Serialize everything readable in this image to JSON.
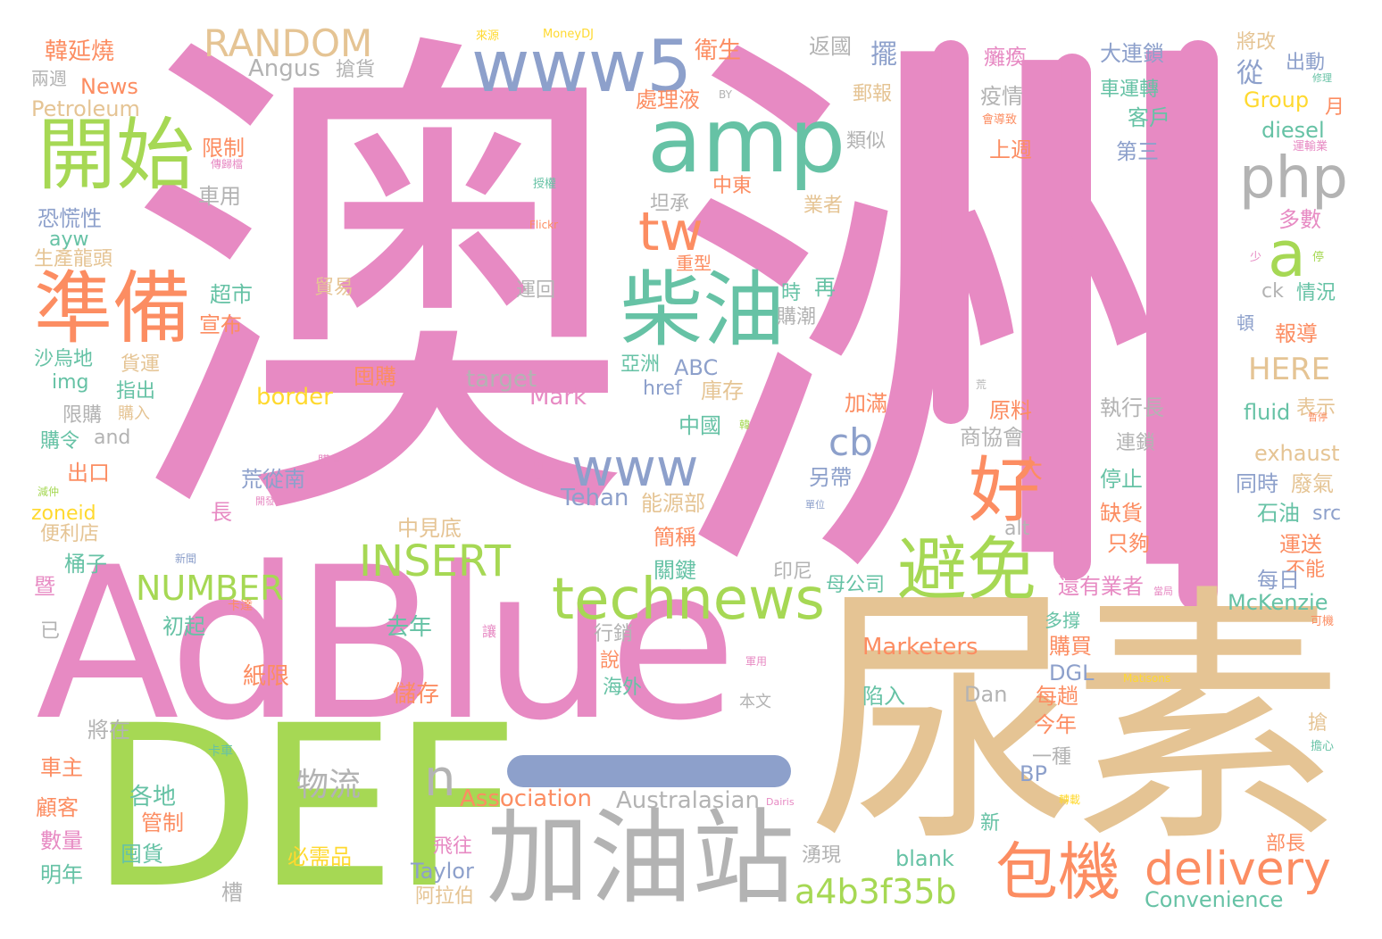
{
  "palette": {
    "pink": "#e78ac3",
    "green": "#a6d854",
    "tan": "#e5c494",
    "gray": "#b3b3b3",
    "teal": "#66c2a5",
    "blue": "#8da0cb",
    "orange": "#fc8d62",
    "yellow": "#ffd92f"
  },
  "words": [
    {
      "text": "澳",
      "color": "pink"
    },
    {
      "text": "洲",
      "color": "pink"
    },
    {
      "text": "AdBlue",
      "color": "pink"
    },
    {
      "text": "尿素",
      "color": "tan"
    },
    {
      "text": "DEF",
      "color": "green"
    },
    {
      "text": "加油站",
      "color": "gray"
    },
    {
      "text": "開始",
      "color": "green"
    },
    {
      "text": "準備",
      "color": "orange"
    },
    {
      "text": "amp",
      "color": "teal"
    },
    {
      "text": "www5",
      "color": "blue"
    },
    {
      "text": "RANDOM",
      "color": "tan"
    },
    {
      "text": "柴油",
      "color": "teal"
    },
    {
      "text": "tw",
      "color": "orange"
    },
    {
      "text": "php",
      "color": "gray"
    },
    {
      "text": "a",
      "color": "green"
    },
    {
      "text": "好",
      "color": "orange"
    },
    {
      "text": "避免",
      "color": "green"
    },
    {
      "text": "technews",
      "color": "green"
    },
    {
      "text": "www",
      "color": "blue"
    },
    {
      "text": "INSERT",
      "color": "green"
    },
    {
      "text": "NUMBER",
      "color": "green"
    },
    {
      "text": "包機",
      "color": "orange"
    },
    {
      "text": "delivery",
      "color": "orange"
    },
    {
      "text": "a4b3f35b",
      "color": "green"
    },
    {
      "text": "n",
      "color": "gray"
    },
    {
      "text": "物流",
      "color": "gray"
    },
    {
      "text": "cb",
      "color": "blue"
    },
    {
      "text": "Marketers",
      "color": "orange"
    },
    {
      "text": "Association",
      "color": "orange"
    },
    {
      "text": "Australasian",
      "color": "gray"
    },
    {
      "text": "Convenience",
      "color": "teal"
    },
    {
      "text": "McKenzie",
      "color": "teal"
    },
    {
      "text": "exhaust",
      "color": "tan"
    },
    {
      "text": "HERE",
      "color": "tan"
    },
    {
      "text": "Petroleum",
      "color": "tan"
    },
    {
      "text": "News",
      "color": "orange"
    },
    {
      "text": "Angus",
      "color": "gray"
    },
    {
      "text": "border",
      "color": "yellow"
    },
    {
      "text": "target",
      "color": "gray"
    },
    {
      "text": "Mark",
      "color": "pink"
    },
    {
      "text": "Tehan",
      "color": "blue"
    },
    {
      "text": "Taylor",
      "color": "blue"
    },
    {
      "text": "blank",
      "color": "teal"
    },
    {
      "text": "Dan",
      "color": "gray"
    },
    {
      "text": "DGL",
      "color": "blue"
    },
    {
      "text": "BP",
      "color": "blue"
    },
    {
      "text": "Group",
      "color": "yellow"
    },
    {
      "text": "diesel",
      "color": "teal"
    },
    {
      "text": "fluid",
      "color": "teal"
    },
    {
      "text": "src",
      "color": "blue"
    },
    {
      "text": "ck",
      "color": "gray"
    },
    {
      "text": "alt",
      "color": "gray"
    },
    {
      "text": "href",
      "color": "blue"
    },
    {
      "text": "ABC",
      "color": "blue"
    },
    {
      "text": "img",
      "color": "teal"
    },
    {
      "text": "and",
      "color": "gray"
    },
    {
      "text": "ayw",
      "color": "teal"
    },
    {
      "text": "zoneid",
      "color": "yellow"
    },
    {
      "text": "韓延燒",
      "color": "orange"
    },
    {
      "text": "兩週",
      "color": "gray"
    },
    {
      "text": "限制",
      "color": "orange"
    },
    {
      "text": "車用",
      "color": "gray"
    },
    {
      "text": "恐慌性",
      "color": "blue"
    },
    {
      "text": "生產龍頭",
      "color": "tan"
    },
    {
      "text": "超市",
      "color": "teal"
    },
    {
      "text": "宣布",
      "color": "orange"
    },
    {
      "text": "沙烏地",
      "color": "teal"
    },
    {
      "text": "貨運",
      "color": "tan"
    },
    {
      "text": "指出",
      "color": "teal"
    },
    {
      "text": "限購",
      "color": "gray"
    },
    {
      "text": "購令",
      "color": "teal"
    },
    {
      "text": "出口",
      "color": "orange"
    },
    {
      "text": "便利店",
      "color": "tan"
    },
    {
      "text": "桶子",
      "color": "teal"
    },
    {
      "text": "初起",
      "color": "teal"
    },
    {
      "text": "將在",
      "color": "gray"
    },
    {
      "text": "車主",
      "color": "orange"
    },
    {
      "text": "顧客",
      "color": "orange"
    },
    {
      "text": "數量",
      "color": "pink"
    },
    {
      "text": "明年",
      "color": "teal"
    },
    {
      "text": "各地",
      "color": "teal"
    },
    {
      "text": "管制",
      "color": "orange"
    },
    {
      "text": "囤貨",
      "color": "teal"
    },
    {
      "text": "紙限",
      "color": "orange"
    },
    {
      "text": "儲存",
      "color": "orange"
    },
    {
      "text": "去年",
      "color": "teal"
    },
    {
      "text": "必需品",
      "color": "yellow"
    },
    {
      "text": "飛往",
      "color": "pink"
    },
    {
      "text": "阿拉伯",
      "color": "tan"
    },
    {
      "text": "荒從南",
      "color": "blue"
    },
    {
      "text": "中見底",
      "color": "tan"
    },
    {
      "text": "能源部",
      "color": "tan"
    },
    {
      "text": "簡稱",
      "color": "orange"
    },
    {
      "text": "關鍵",
      "color": "teal"
    },
    {
      "text": "行銷",
      "color": "gray"
    },
    {
      "text": "海外",
      "color": "teal"
    },
    {
      "text": "說",
      "color": "orange"
    },
    {
      "text": "衛生",
      "color": "orange"
    },
    {
      "text": "處理液",
      "color": "orange"
    },
    {
      "text": "返國",
      "color": "gray"
    },
    {
      "text": "郵報",
      "color": "tan"
    },
    {
      "text": "類似",
      "color": "gray"
    },
    {
      "text": "擺",
      "color": "blue"
    },
    {
      "text": "疫情",
      "color": "gray"
    },
    {
      "text": "癱瘓",
      "color": "pink"
    },
    {
      "text": "上週",
      "color": "orange"
    },
    {
      "text": "大連鎖",
      "color": "blue"
    },
    {
      "text": "車運轉",
      "color": "teal"
    },
    {
      "text": "客戶",
      "color": "teal"
    },
    {
      "text": "第三",
      "color": "blue"
    },
    {
      "text": "將改",
      "color": "tan"
    },
    {
      "text": "出動",
      "color": "blue"
    },
    {
      "text": "從",
      "color": "blue"
    },
    {
      "text": "月",
      "color": "orange"
    },
    {
      "text": "多數",
      "color": "pink"
    },
    {
      "text": "情況",
      "color": "teal"
    },
    {
      "text": "報導",
      "color": "orange"
    },
    {
      "text": "表示",
      "color": "tan"
    },
    {
      "text": "廢氣",
      "color": "tan"
    },
    {
      "text": "同時",
      "color": "blue"
    },
    {
      "text": "石油",
      "color": "teal"
    },
    {
      "text": "運送",
      "color": "orange"
    },
    {
      "text": "不能",
      "color": "orange"
    },
    {
      "text": "每日",
      "color": "blue"
    },
    {
      "text": "執行長",
      "color": "gray"
    },
    {
      "text": "連鎖",
      "color": "gray"
    },
    {
      "text": "停止",
      "color": "teal"
    },
    {
      "text": "缺貨",
      "color": "orange"
    },
    {
      "text": "只夠",
      "color": "orange"
    },
    {
      "text": "還有業者",
      "color": "pink"
    },
    {
      "text": "母公司",
      "color": "teal"
    },
    {
      "text": "原料",
      "color": "orange"
    },
    {
      "text": "商協會",
      "color": "gray"
    },
    {
      "text": "另帶",
      "color": "blue"
    },
    {
      "text": "大",
      "color": "orange"
    },
    {
      "text": "加滿",
      "color": "orange"
    },
    {
      "text": "中國",
      "color": "teal"
    },
    {
      "text": "庫存",
      "color": "tan"
    },
    {
      "text": "亞洲",
      "color": "teal"
    },
    {
      "text": "囤購",
      "color": "orange"
    },
    {
      "text": "購買",
      "color": "orange"
    },
    {
      "text": "每趟",
      "color": "orange"
    },
    {
      "text": "今年",
      "color": "orange"
    },
    {
      "text": "一種",
      "color": "gray"
    },
    {
      "text": "陷入",
      "color": "teal"
    },
    {
      "text": "部長",
      "color": "orange"
    },
    {
      "text": "印尼",
      "color": "gray"
    },
    {
      "text": "湧現",
      "color": "gray"
    },
    {
      "text": "槽",
      "color": "gray"
    },
    {
      "text": "本文",
      "color": "gray"
    },
    {
      "text": "搶",
      "color": "tan"
    },
    {
      "text": "重型",
      "color": "orange"
    },
    {
      "text": "運回",
      "color": "gray"
    },
    {
      "text": "時",
      "color": "teal"
    },
    {
      "text": "再",
      "color": "teal"
    },
    {
      "text": "購潮",
      "color": "gray"
    },
    {
      "text": "坦承",
      "color": "gray"
    },
    {
      "text": "業者",
      "color": "tan"
    },
    {
      "text": "中東",
      "color": "orange"
    },
    {
      "text": "搶貨",
      "color": "gray"
    },
    {
      "text": "貿易",
      "color": "tan"
    },
    {
      "text": "週",
      "color": "pink"
    },
    {
      "text": "長",
      "color": "pink"
    },
    {
      "text": "暨",
      "color": "pink"
    },
    {
      "text": "已",
      "color": "gray"
    },
    {
      "text": "新",
      "color": "teal"
    },
    {
      "text": "頓",
      "color": "blue"
    },
    {
      "text": "多撐",
      "color": "teal"
    },
    {
      "text": "MoneyDJ",
      "color": "yellow"
    },
    {
      "text": "來源",
      "color": "yellow"
    },
    {
      "text": "BY",
      "color": "gray"
    },
    {
      "text": "CC",
      "color": "pink"
    },
    {
      "text": "授權",
      "color": "teal"
    },
    {
      "text": "Flickr",
      "color": "orange"
    },
    {
      "text": "傳歸檔",
      "color": "pink"
    },
    {
      "text": "會導致",
      "color": "orange"
    },
    {
      "text": "運輸業",
      "color": "pink"
    },
    {
      "text": "少",
      "color": "pink"
    },
    {
      "text": "停",
      "color": "green"
    },
    {
      "text": "荒",
      "color": "gray"
    },
    {
      "text": "韓",
      "color": "green"
    },
    {
      "text": "暫停",
      "color": "orange"
    },
    {
      "text": "購入",
      "color": "tan"
    },
    {
      "text": "購貨",
      "color": "pink"
    },
    {
      "text": "減仲",
      "color": "green"
    },
    {
      "text": "開發",
      "color": "pink"
    },
    {
      "text": "單位",
      "color": "blue"
    },
    {
      "text": "新聞",
      "color": "blue"
    },
    {
      "text": "卡達",
      "color": "orange"
    },
    {
      "text": "卡車",
      "color": "teal"
    },
    {
      "text": "軍用",
      "color": "pink"
    },
    {
      "text": "Matisons",
      "color": "yellow"
    },
    {
      "text": "當局",
      "color": "pink"
    },
    {
      "text": "可機",
      "color": "orange"
    },
    {
      "text": "擔心",
      "color": "teal"
    },
    {
      "text": "Dairis",
      "color": "pink"
    },
    {
      "text": "轉載",
      "color": "yellow"
    },
    {
      "text": "讓",
      "color": "pink"
    },
    {
      "text": "修理",
      "color": "teal"
    }
  ]
}
